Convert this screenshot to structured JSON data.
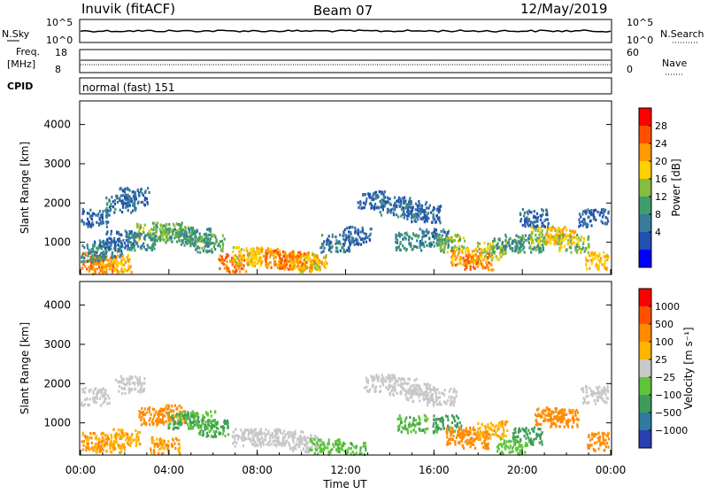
{
  "header": {
    "station": "Inuvik (fitACF)",
    "beam": "Beam 07",
    "date": "12/May/2019"
  },
  "top_panels": {
    "nsky_label": "N.Sky",
    "nsky_ticks": [
      "10^5",
      "10^0"
    ],
    "nsearch_label": "N.Search",
    "nsearch_ticks": [
      "10^5",
      "10^0"
    ],
    "freq_label_1": "Freq.",
    "freq_label_2": "[MHz]",
    "freq_ticks": [
      "18",
      "8"
    ],
    "nave_label": "Nave",
    "nave_ticks": [
      "60",
      "0"
    ],
    "cpid_label": "CPID",
    "cpid_value": "normal (fast) 151"
  },
  "chart_data": [
    {
      "type": "heatmap",
      "name": "power",
      "ylabel": "Slant Range [km]",
      "y_ticks": [
        "4000",
        "3000",
        "2000",
        "1000"
      ],
      "ylim": [
        180,
        4600
      ],
      "colorbar_label": "Power [dB]",
      "colorbar_ticks": [
        "28",
        "24",
        "20",
        "16",
        "12",
        "8",
        "4"
      ],
      "colorbar_colors": [
        "#0000ff",
        "#2050b0",
        "#3a7a9a",
        "#3f9d6c",
        "#86bc3f",
        "#ffd000",
        "#ff9a00",
        "#ff5000",
        "#ff0000"
      ],
      "blobs": [
        {
          "t": 0.5,
          "r": 550,
          "v": 26
        },
        {
          "t": 1.0,
          "r": 450,
          "v": 28
        },
        {
          "t": 1.6,
          "r": 480,
          "v": 24
        },
        {
          "t": 0.4,
          "r": 750,
          "v": 12
        },
        {
          "t": 1.2,
          "r": 850,
          "v": 10
        },
        {
          "t": 1.8,
          "r": 1100,
          "v": 8
        },
        {
          "t": 0.6,
          "r": 1650,
          "v": 8
        },
        {
          "t": 1.8,
          "r": 2000,
          "v": 9
        },
        {
          "t": 2.4,
          "r": 2200,
          "v": 8
        },
        {
          "t": 3.2,
          "r": 1300,
          "v": 18
        },
        {
          "t": 3.9,
          "r": 1300,
          "v": 16
        },
        {
          "t": 4.5,
          "r": 1200,
          "v": 14
        },
        {
          "t": 5.2,
          "r": 1150,
          "v": 12
        },
        {
          "t": 5.8,
          "r": 1000,
          "v": 14
        },
        {
          "t": 2.7,
          "r": 1050,
          "v": 12
        },
        {
          "t": 6.9,
          "r": 500,
          "v": 28
        },
        {
          "t": 7.5,
          "r": 700,
          "v": 22
        },
        {
          "t": 8.3,
          "r": 650,
          "v": 24
        },
        {
          "t": 9.0,
          "r": 600,
          "v": 28
        },
        {
          "t": 9.6,
          "r": 550,
          "v": 28
        },
        {
          "t": 10.1,
          "r": 550,
          "v": 26
        },
        {
          "t": 10.5,
          "r": 500,
          "v": 22
        },
        {
          "t": 11.5,
          "r": 1000,
          "v": 10
        },
        {
          "t": 12.5,
          "r": 1200,
          "v": 8
        },
        {
          "t": 13.2,
          "r": 2100,
          "v": 8
        },
        {
          "t": 14.2,
          "r": 1950,
          "v": 10
        },
        {
          "t": 15.0,
          "r": 1850,
          "v": 9
        },
        {
          "t": 15.6,
          "r": 1750,
          "v": 8
        },
        {
          "t": 14.9,
          "r": 1050,
          "v": 12
        },
        {
          "t": 16.0,
          "r": 1150,
          "v": 10
        },
        {
          "t": 16.8,
          "r": 1000,
          "v": 18
        },
        {
          "t": 17.4,
          "r": 650,
          "v": 26
        },
        {
          "t": 18.0,
          "r": 550,
          "v": 28
        },
        {
          "t": 18.6,
          "r": 800,
          "v": 20
        },
        {
          "t": 19.3,
          "r": 1000,
          "v": 12
        },
        {
          "t": 20.3,
          "r": 1000,
          "v": 14
        },
        {
          "t": 21.0,
          "r": 1200,
          "v": 20
        },
        {
          "t": 21.7,
          "r": 1200,
          "v": 24
        },
        {
          "t": 22.3,
          "r": 1000,
          "v": 18
        },
        {
          "t": 23.2,
          "r": 1650,
          "v": 8
        },
        {
          "t": 23.5,
          "r": 550,
          "v": 24
        },
        {
          "t": 20.5,
          "r": 1650,
          "v": 8
        }
      ]
    },
    {
      "type": "heatmap",
      "name": "velocity",
      "ylabel": "Slant Range [km]",
      "y_ticks": [
        "4000",
        "3000",
        "2000",
        "1000"
      ],
      "ylim": [
        180,
        4600
      ],
      "colorbar_label": "Velocity [m s⁻¹]",
      "colorbar_ticks": [
        "1000",
        "500",
        "100",
        "25",
        "−25",
        "−100",
        "−500",
        "−1000"
      ],
      "colorbar_colors": [
        "#2a3fb0",
        "#2f7a9e",
        "#3e9c5a",
        "#5ec43a",
        "#c8c8c8",
        "#ffb400",
        "#ff8a00",
        "#ff5000",
        "#ff0000"
      ],
      "x_ticks": [
        "00:00",
        "04:00",
        "08:00",
        "12:00",
        "16:00",
        "20:00",
        "00:00"
      ],
      "xlabel": "Time UT",
      "blobs": [
        {
          "t": 0.5,
          "r": 550,
          "v": -120
        },
        {
          "t": 1.3,
          "r": 500,
          "v": -90
        },
        {
          "t": 2.0,
          "r": 650,
          "v": -80
        },
        {
          "t": 0.6,
          "r": 1700,
          "v": 0
        },
        {
          "t": 2.2,
          "r": 2000,
          "v": 0
        },
        {
          "t": 3.3,
          "r": 1200,
          "v": -300
        },
        {
          "t": 4.1,
          "r": 1250,
          "v": -200
        },
        {
          "t": 4.6,
          "r": 1100,
          "v": 120
        },
        {
          "t": 5.4,
          "r": 1100,
          "v": 80
        },
        {
          "t": 6.0,
          "r": 900,
          "v": 120
        },
        {
          "t": 7.5,
          "r": 650,
          "v": 0
        },
        {
          "t": 8.5,
          "r": 650,
          "v": 0
        },
        {
          "t": 9.4,
          "r": 600,
          "v": 5
        },
        {
          "t": 10.2,
          "r": 500,
          "v": 0
        },
        {
          "t": 11.0,
          "r": 400,
          "v": 60
        },
        {
          "t": 12.2,
          "r": 300,
          "v": 80
        },
        {
          "t": 13.5,
          "r": 2050,
          "v": 0
        },
        {
          "t": 14.6,
          "r": 1950,
          "v": 0
        },
        {
          "t": 15.4,
          "r": 1800,
          "v": 0
        },
        {
          "t": 16.3,
          "r": 1700,
          "v": 0
        },
        {
          "t": 15.0,
          "r": 1000,
          "v": 80
        },
        {
          "t": 16.6,
          "r": 1000,
          "v": 150
        },
        {
          "t": 17.2,
          "r": 700,
          "v": -300
        },
        {
          "t": 17.8,
          "r": 600,
          "v": -250
        },
        {
          "t": 18.6,
          "r": 850,
          "v": -80
        },
        {
          "t": 20.2,
          "r": 700,
          "v": 200
        },
        {
          "t": 21.2,
          "r": 1200,
          "v": -300
        },
        {
          "t": 21.9,
          "r": 1150,
          "v": -200
        },
        {
          "t": 23.3,
          "r": 1750,
          "v": 0
        },
        {
          "t": 23.6,
          "r": 550,
          "v": -150
        },
        {
          "t": 3.8,
          "r": 450,
          "v": -100
        },
        {
          "t": 19.5,
          "r": 400,
          "v": 60
        }
      ]
    }
  ]
}
